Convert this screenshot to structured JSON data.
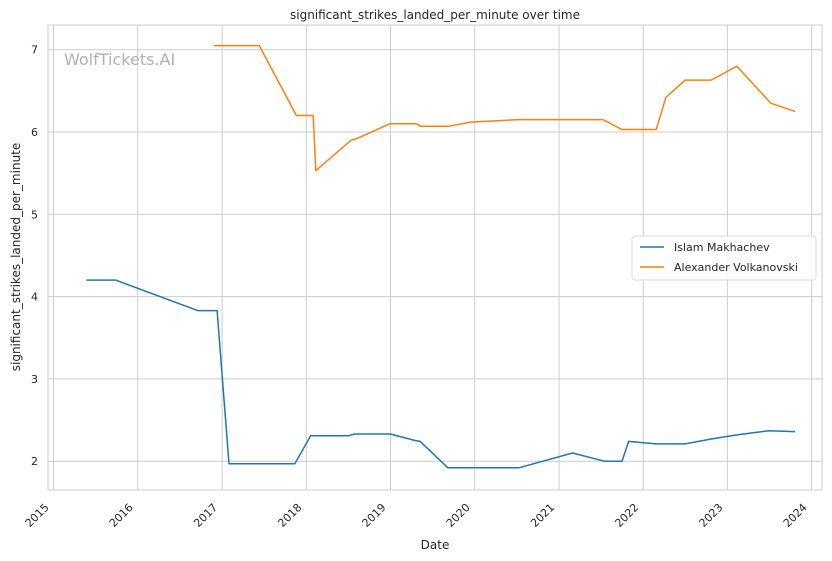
{
  "chart_data": {
    "type": "line",
    "title": "significant_strikes_landed_per_minute over time",
    "xlabel": "Date",
    "ylabel": "significant_strikes_landed_per_minute",
    "watermark": "WolfTickets.AI",
    "x_ticks": [
      "2015",
      "2016",
      "2017",
      "2018",
      "2019",
      "2020",
      "2021",
      "2022",
      "2023",
      "2024"
    ],
    "y_ticks": [
      2,
      3,
      4,
      5,
      6,
      7
    ],
    "xlim": [
      "2014-12-08",
      "2024-02-15"
    ],
    "ylim": [
      1.65,
      7.3
    ],
    "grid": true,
    "legend_position": "center-right",
    "series": [
      {
        "name": "Islam Makhachev",
        "color": "#1f77b4",
        "points": [
          [
            "2015-05-23",
            4.2
          ],
          [
            "2015-09-27",
            4.2
          ],
          [
            "2016-09-17",
            3.83
          ],
          [
            "2016-12-10",
            3.83
          ],
          [
            "2017-01-31",
            1.97
          ],
          [
            "2017-11-12",
            1.97
          ],
          [
            "2018-01-20",
            2.31
          ],
          [
            "2018-07-05",
            2.31
          ],
          [
            "2018-07-28",
            2.33
          ],
          [
            "2018-12-31",
            2.33
          ],
          [
            "2019-04-20",
            2.25
          ],
          [
            "2019-05-10",
            2.24
          ],
          [
            "2019-09-07",
            1.92
          ],
          [
            "2020-07-11",
            1.92
          ],
          [
            "2021-02-28",
            2.1
          ],
          [
            "2021-07-17",
            2.0
          ],
          [
            "2021-10-01",
            2.0
          ],
          [
            "2021-10-30",
            2.24
          ],
          [
            "2022-02-26",
            2.21
          ],
          [
            "2022-07-02",
            2.21
          ],
          [
            "2022-10-22",
            2.27
          ],
          [
            "2023-02-11",
            2.32
          ],
          [
            "2023-07-01",
            2.37
          ],
          [
            "2023-10-21",
            2.36
          ]
        ]
      },
      {
        "name": "Alexander Volkanovski",
        "color": "#ff7f0e",
        "points": [
          [
            "2016-11-26",
            7.05
          ],
          [
            "2017-06-11",
            7.05
          ],
          [
            "2017-11-19",
            6.2
          ],
          [
            "2018-01-31",
            6.2
          ],
          [
            "2018-02-11",
            5.53
          ],
          [
            "2018-07-14",
            5.9
          ],
          [
            "2018-08-08",
            5.92
          ],
          [
            "2018-12-29",
            6.1
          ],
          [
            "2019-04-24",
            6.1
          ],
          [
            "2019-05-11",
            6.07
          ],
          [
            "2019-09-12",
            6.07
          ],
          [
            "2019-12-14",
            6.12
          ],
          [
            "2020-07-12",
            6.15
          ],
          [
            "2021-07-10",
            6.15
          ],
          [
            "2021-09-30",
            6.03
          ],
          [
            "2022-02-26",
            6.03
          ],
          [
            "2022-04-09",
            6.42
          ],
          [
            "2022-07-02",
            6.63
          ],
          [
            "2022-10-22",
            6.63
          ],
          [
            "2023-02-11",
            6.8
          ],
          [
            "2023-07-08",
            6.35
          ],
          [
            "2023-10-21",
            6.25
          ]
        ]
      }
    ]
  }
}
